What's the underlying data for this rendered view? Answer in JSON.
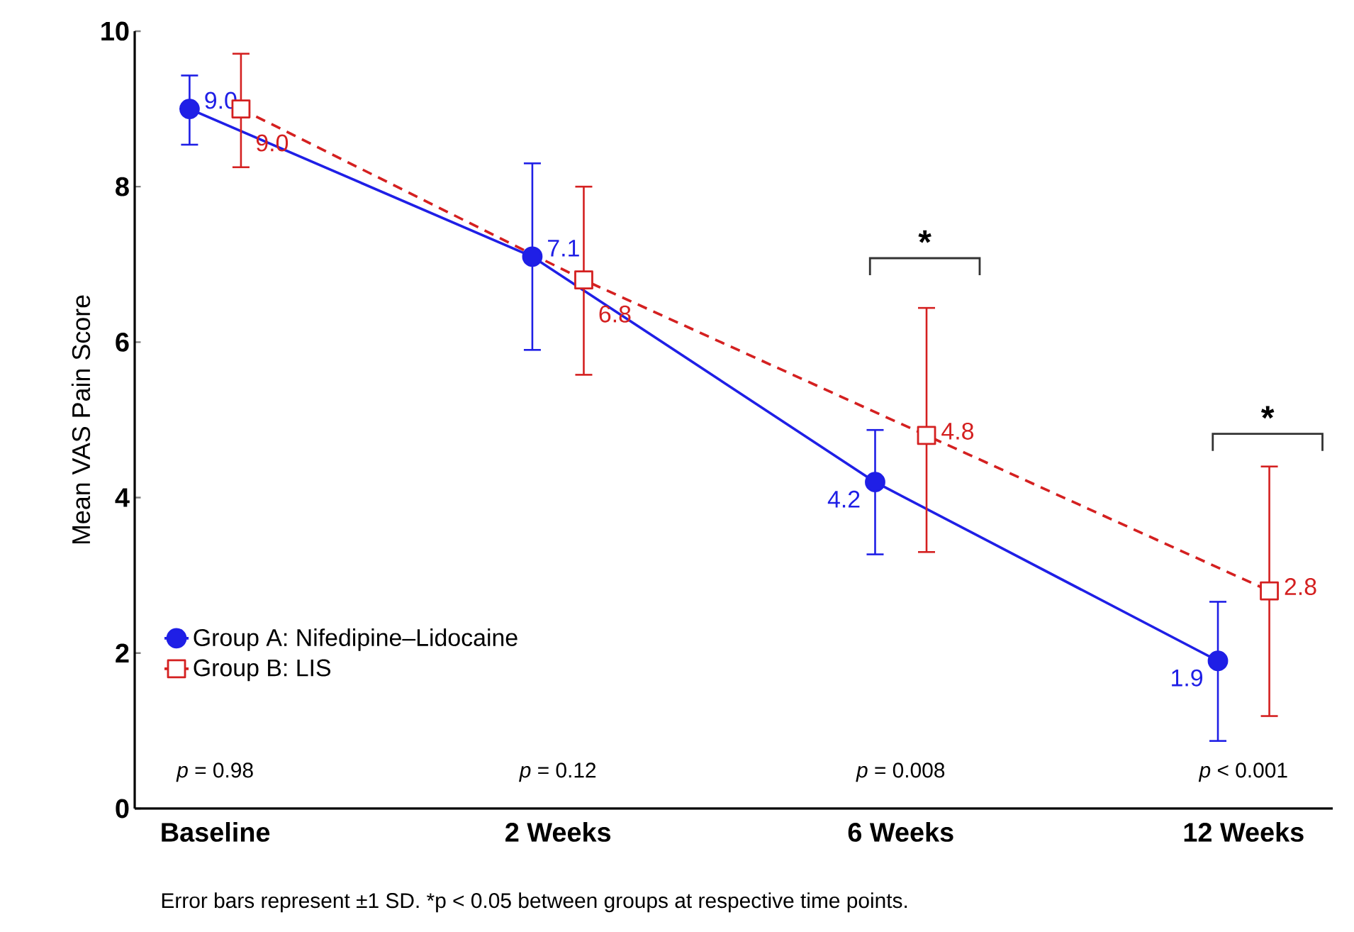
{
  "chart_data": {
    "type": "line",
    "ylabel": "Mean VAS Pain Score",
    "categories": [
      "Baseline",
      "2 Weeks",
      "6 Weeks",
      "12 Weeks"
    ],
    "series": [
      {
        "name": "Group A: Nifedipine–Lidocaine",
        "color": "#1f1fe6",
        "values": [
          9.0,
          7.1,
          4.2,
          1.9
        ],
        "errors": [
          [
            8.54,
            9.43
          ],
          [
            5.9,
            8.3
          ],
          [
            3.27,
            4.87
          ],
          [
            0.87,
            2.66
          ]
        ],
        "value_labels": [
          "9.0",
          "7.1",
          "4.2",
          "1.9"
        ],
        "marker": "circle",
        "line_style": "solid"
      },
      {
        "name": "Group B: LIS",
        "color": "#d42020",
        "values": [
          9.0,
          6.8,
          4.8,
          2.8
        ],
        "errors": [
          [
            8.25,
            9.71
          ],
          [
            5.58,
            8.0
          ],
          [
            3.3,
            6.44
          ],
          [
            1.19,
            4.4
          ]
        ],
        "value_labels": [
          "9.0",
          "6.8",
          "4.8",
          "2.8"
        ],
        "marker": "square",
        "line_style": "dashed"
      }
    ],
    "ylim": [
      0,
      10
    ],
    "yticks": [
      0,
      2,
      4,
      6,
      8,
      10
    ],
    "grid": false,
    "legend": "bottom left",
    "annotations": [
      "*",
      "*",
      "*p* = 0.98",
      "*p* = 0.12",
      "*p* = 0.008",
      "*p* < 0.001",
      "Error bars represent ±1 SD. *p < 0.05 between groups at respective time points."
    ]
  }
}
